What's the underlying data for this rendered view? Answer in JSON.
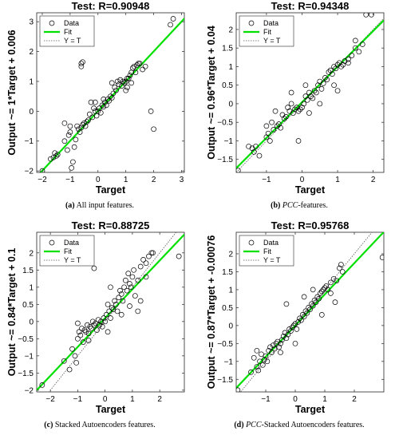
{
  "chart_data": [
    {
      "type": "scatter",
      "title": "Test: R=0.90948",
      "xlabel": "Target",
      "ylabel": "Output ~= 1*Target + 0.006",
      "xlim": [
        -2.2,
        3.1
      ],
      "ylim": [
        -2.05,
        3.3
      ],
      "xticks": [
        -2,
        -1,
        0,
        1,
        2,
        3
      ],
      "yticks": [
        -2,
        -1,
        0,
        1,
        2,
        3
      ],
      "fit": {
        "slope": 1.0,
        "intercept": 0.006
      },
      "grid": false,
      "legend": {
        "position": "top-left",
        "entries": [
          "Data",
          "Fit",
          "Y = T"
        ]
      },
      "caption": {
        "letter": "(a)",
        "text": "All input features."
      },
      "points": [
        [
          -2.0,
          -2.0
        ],
        [
          -1.7,
          -1.6
        ],
        [
          -1.6,
          -1.55
        ],
        [
          -1.55,
          -1.4
        ],
        [
          -1.5,
          -1.5
        ],
        [
          -1.45,
          -1.45
        ],
        [
          -1.2,
          -1.0
        ],
        [
          -1.1,
          -1.3
        ],
        [
          -1.05,
          -0.8
        ],
        [
          -1.0,
          -0.5
        ],
        [
          -1.0,
          -0.7
        ],
        [
          -0.95,
          -1.9
        ],
        [
          -0.9,
          -1.7
        ],
        [
          -0.85,
          -1.2
        ],
        [
          -0.8,
          -0.95
        ],
        [
          -0.75,
          -0.5
        ],
        [
          -0.7,
          -0.6
        ],
        [
          -0.65,
          -0.7
        ],
        [
          -0.6,
          -0.55
        ],
        [
          -0.55,
          -0.45
        ],
        [
          -0.5,
          -0.4
        ],
        [
          -0.45,
          -0.5
        ],
        [
          -0.4,
          -0.35
        ],
        [
          -0.35,
          -0.3
        ],
        [
          -0.3,
          -0.1
        ],
        [
          -0.25,
          0.3
        ],
        [
          -0.2,
          -0.2
        ],
        [
          -0.15,
          0.1
        ],
        [
          -0.1,
          0.0
        ],
        [
          -0.05,
          -0.15
        ],
        [
          0.0,
          0.0
        ],
        [
          0.05,
          0.1
        ],
        [
          0.1,
          -0.05
        ],
        [
          0.15,
          0.2
        ],
        [
          0.2,
          0.15
        ],
        [
          0.25,
          0.3
        ],
        [
          0.3,
          0.2
        ],
        [
          0.35,
          0.4
        ],
        [
          0.4,
          0.35
        ],
        [
          0.45,
          0.5
        ],
        [
          0.5,
          0.45
        ],
        [
          0.55,
          0.6
        ],
        [
          0.6,
          0.8
        ],
        [
          0.65,
          0.7
        ],
        [
          0.7,
          1.0
        ],
        [
          0.75,
          0.9
        ],
        [
          0.8,
          1.05
        ],
        [
          0.85,
          0.85
        ],
        [
          0.9,
          1.0
        ],
        [
          0.95,
          0.95
        ],
        [
          1.0,
          1.0
        ],
        [
          1.05,
          0.8
        ],
        [
          1.1,
          1.1
        ],
        [
          1.15,
          1.2
        ],
        [
          1.2,
          0.95
        ],
        [
          1.25,
          1.45
        ],
        [
          1.3,
          1.5
        ],
        [
          1.35,
          1.3
        ],
        [
          1.4,
          1.55
        ],
        [
          1.45,
          1.6
        ],
        [
          1.5,
          1.6
        ],
        [
          1.6,
          1.4
        ],
        [
          1.7,
          1.5
        ],
        [
          1.9,
          0.0
        ],
        [
          2.0,
          -0.6
        ],
        [
          2.6,
          2.9
        ],
        [
          2.7,
          3.1
        ],
        [
          -0.6,
          1.5
        ],
        [
          -0.6,
          1.6
        ],
        [
          -0.55,
          1.65
        ],
        [
          -0.1,
          0.3
        ],
        [
          0.2,
          0.4
        ],
        [
          -1.2,
          -0.4
        ],
        [
          0.5,
          0.95
        ],
        [
          1.0,
          0.7
        ],
        [
          1.05,
          1.1
        ],
        [
          1.2,
          1.3
        ]
      ]
    },
    {
      "type": "scatter",
      "title": "Test: R=0.94348",
      "xlabel": "Target",
      "ylabel": "Output ~= 0.96*Target + 0.04",
      "xlim": [
        -1.85,
        2.3
      ],
      "ylim": [
        -1.85,
        2.45
      ],
      "xticks": [
        -1,
        0,
        1,
        2
      ],
      "yticks": [
        -1.5,
        -1,
        -0.5,
        0,
        0.5,
        1,
        1.5,
        2
      ],
      "fit": {
        "slope": 0.96,
        "intercept": 0.04
      },
      "grid": false,
      "legend": {
        "position": "top-left",
        "entries": [
          "Data",
          "Fit",
          "Y = T"
        ]
      },
      "caption": {
        "letter": "(b)",
        "text": "PCC-features."
      },
      "points": [
        [
          -1.8,
          -1.8
        ],
        [
          -1.5,
          -1.15
        ],
        [
          -1.4,
          -1.2
        ],
        [
          -1.35,
          -1.3
        ],
        [
          -1.3,
          -1.15
        ],
        [
          -1.2,
          -1.4
        ],
        [
          -1.0,
          -0.6
        ],
        [
          -0.95,
          -0.8
        ],
        [
          -0.9,
          -1.0
        ],
        [
          -0.85,
          -0.5
        ],
        [
          -0.8,
          -0.7
        ],
        [
          -0.75,
          -0.2
        ],
        [
          -0.7,
          -0.6
        ],
        [
          -0.65,
          -0.55
        ],
        [
          -0.6,
          -0.65
        ],
        [
          -0.55,
          -0.3
        ],
        [
          -0.5,
          -0.4
        ],
        [
          -0.45,
          -0.35
        ],
        [
          -0.4,
          -0.1
        ],
        [
          -0.35,
          -0.2
        ],
        [
          -0.3,
          0.0
        ],
        [
          -0.25,
          -0.25
        ],
        [
          -0.2,
          -0.15
        ],
        [
          -0.15,
          -0.1
        ],
        [
          -0.1,
          -0.2
        ],
        [
          -0.05,
          -0.15
        ],
        [
          0.0,
          -0.1
        ],
        [
          0.05,
          0.0
        ],
        [
          0.1,
          0.2
        ],
        [
          0.15,
          0.1
        ],
        [
          0.2,
          0.3
        ],
        [
          0.25,
          0.2
        ],
        [
          0.3,
          0.15
        ],
        [
          0.35,
          0.35
        ],
        [
          0.4,
          0.3
        ],
        [
          0.45,
          0.5
        ],
        [
          0.5,
          0.6
        ],
        [
          0.55,
          0.4
        ],
        [
          0.6,
          0.55
        ],
        [
          0.65,
          0.7
        ],
        [
          0.7,
          0.65
        ],
        [
          0.75,
          0.85
        ],
        [
          0.8,
          0.9
        ],
        [
          0.85,
          0.8
        ],
        [
          0.9,
          1.0
        ],
        [
          0.95,
          0.95
        ],
        [
          1.0,
          1.05
        ],
        [
          1.05,
          1.1
        ],
        [
          1.1,
          1.0
        ],
        [
          1.15,
          1.05
        ],
        [
          1.2,
          1.15
        ],
        [
          1.3,
          1.2
        ],
        [
          1.4,
          1.3
        ],
        [
          1.5,
          1.5
        ],
        [
          1.6,
          1.4
        ],
        [
          1.7,
          1.6
        ],
        [
          1.8,
          2.4
        ],
        [
          1.95,
          2.4
        ],
        [
          -0.1,
          -1.0
        ],
        [
          0.1,
          0.5
        ],
        [
          0.5,
          0.0
        ],
        [
          0.9,
          0.5
        ],
        [
          1.0,
          0.35
        ],
        [
          1.5,
          1.7
        ],
        [
          -1.0,
          -0.9
        ],
        [
          0.2,
          -0.25
        ],
        [
          -0.3,
          0.3
        ],
        [
          1.3,
          1.1
        ]
      ]
    },
    {
      "type": "scatter",
      "title": "Test: R=0.88725",
      "xlabel": "Target",
      "ylabel": "Output ~= 0.84*Target + 0.1",
      "xlim": [
        -2.5,
        2.9
      ],
      "ylim": [
        -2.05,
        2.6
      ],
      "xticks": [
        -2,
        -1,
        0,
        1,
        2
      ],
      "yticks": [
        -2,
        -1.5,
        -1,
        -0.5,
        0,
        0.5,
        1,
        1.5,
        2
      ],
      "fit": {
        "slope": 0.84,
        "intercept": 0.1
      },
      "grid": false,
      "legend": {
        "position": "top-left",
        "entries": [
          "Data",
          "Fit",
          "Y = T"
        ]
      },
      "caption": {
        "letter": "(c)",
        "text": "Stacked Autoencoders features."
      },
      "points": [
        [
          -2.3,
          -1.85
        ],
        [
          -1.5,
          -1.15
        ],
        [
          -1.3,
          -1.4
        ],
        [
          -1.2,
          -0.8
        ],
        [
          -1.1,
          -1.0
        ],
        [
          -1.05,
          -1.2
        ],
        [
          -1.0,
          -0.5
        ],
        [
          -0.95,
          -0.3
        ],
        [
          -0.9,
          -0.4
        ],
        [
          -0.85,
          -0.2
        ],
        [
          -0.8,
          -0.6
        ],
        [
          -0.75,
          -0.25
        ],
        [
          -0.7,
          -0.3
        ],
        [
          -0.65,
          -0.1
        ],
        [
          -0.6,
          -0.35
        ],
        [
          -0.55,
          -0.15
        ],
        [
          -0.5,
          -0.2
        ],
        [
          -0.45,
          0.0
        ],
        [
          -0.4,
          -0.1
        ],
        [
          -0.35,
          -0.05
        ],
        [
          -0.3,
          -0.25
        ],
        [
          -0.25,
          0.05
        ],
        [
          -0.2,
          -0.1
        ],
        [
          -0.15,
          0.0
        ],
        [
          -0.1,
          -0.15
        ],
        [
          -0.05,
          0.1
        ],
        [
          0.0,
          0.0
        ],
        [
          0.05,
          0.2
        ],
        [
          0.1,
          0.5
        ],
        [
          0.15,
          0.3
        ],
        [
          0.2,
          0.1
        ],
        [
          0.25,
          0.4
        ],
        [
          0.3,
          0.35
        ],
        [
          0.35,
          0.6
        ],
        [
          0.4,
          0.5
        ],
        [
          0.45,
          0.3
        ],
        [
          0.5,
          0.7
        ],
        [
          0.55,
          0.9
        ],
        [
          0.6,
          0.8
        ],
        [
          0.65,
          0.6
        ],
        [
          0.7,
          1.0
        ],
        [
          0.75,
          1.2
        ],
        [
          0.8,
          0.9
        ],
        [
          0.85,
          1.4
        ],
        [
          0.9,
          1.1
        ],
        [
          0.95,
          1.0
        ],
        [
          1.0,
          1.3
        ],
        [
          1.05,
          1.5
        ],
        [
          1.1,
          0.75
        ],
        [
          1.2,
          1.2
        ],
        [
          1.3,
          1.6
        ],
        [
          1.4,
          1.8
        ],
        [
          1.5,
          1.7
        ],
        [
          1.6,
          1.9
        ],
        [
          1.7,
          2.0
        ],
        [
          1.75,
          2.0
        ],
        [
          2.7,
          1.9
        ],
        [
          -0.4,
          1.55
        ],
        [
          0.2,
          1.0
        ],
        [
          1.2,
          0.3
        ],
        [
          1.3,
          0.6
        ],
        [
          -1.0,
          -0.05
        ],
        [
          0.1,
          -0.3
        ],
        [
          0.9,
          0.45
        ],
        [
          1.5,
          1.3
        ],
        [
          -0.6,
          -0.55
        ],
        [
          0.6,
          0.2
        ]
      ]
    },
    {
      "type": "scatter",
      "title": "Test: R=0.95768",
      "xlabel": "Target",
      "ylabel": "Output ~= 0.87*Target + -0.00076",
      "xlim": [
        -2.0,
        3.0
      ],
      "ylim": [
        -1.85,
        2.6
      ],
      "xticks": [
        -1,
        0,
        1,
        2
      ],
      "yticks": [
        -1.5,
        -1,
        -0.5,
        0,
        0.5,
        1,
        1.5,
        2
      ],
      "fit": {
        "slope": 0.87,
        "intercept": -0.00076
      },
      "grid": false,
      "legend": {
        "position": "top-left",
        "entries": [
          "Data",
          "Fit",
          "Y = T"
        ]
      },
      "caption": {
        "letter": "(d)",
        "text": "PCC-Stacked Autoencoders features."
      },
      "points": [
        [
          -1.95,
          -1.8
        ],
        [
          -1.5,
          -1.3
        ],
        [
          -1.4,
          -0.9
        ],
        [
          -1.3,
          -1.15
        ],
        [
          -1.25,
          -1.25
        ],
        [
          -1.2,
          -1.0
        ],
        [
          -1.15,
          -0.8
        ],
        [
          -1.1,
          -1.1
        ],
        [
          -1.05,
          -0.95
        ],
        [
          -1.0,
          -0.85
        ],
        [
          -0.95,
          -1.0
        ],
        [
          -0.9,
          -0.7
        ],
        [
          -0.85,
          -0.6
        ],
        [
          -0.8,
          -0.75
        ],
        [
          -0.75,
          -0.55
        ],
        [
          -0.7,
          -0.65
        ],
        [
          -0.65,
          -0.5
        ],
        [
          -0.6,
          -0.45
        ],
        [
          -0.55,
          -0.6
        ],
        [
          -0.5,
          -0.5
        ],
        [
          -0.45,
          -0.4
        ],
        [
          -0.4,
          -0.3
        ],
        [
          -0.35,
          -0.2
        ],
        [
          -0.3,
          -0.35
        ],
        [
          -0.25,
          -0.25
        ],
        [
          -0.2,
          -0.1
        ],
        [
          -0.15,
          -0.15
        ],
        [
          -0.1,
          -0.05
        ],
        [
          -0.05,
          0.0
        ],
        [
          0.0,
          0.05
        ],
        [
          0.05,
          -0.1
        ],
        [
          0.1,
          0.1
        ],
        [
          0.15,
          0.2
        ],
        [
          0.2,
          0.15
        ],
        [
          0.25,
          0.3
        ],
        [
          0.3,
          0.25
        ],
        [
          0.35,
          0.4
        ],
        [
          0.4,
          0.35
        ],
        [
          0.45,
          0.5
        ],
        [
          0.5,
          0.45
        ],
        [
          0.55,
          0.6
        ],
        [
          0.6,
          0.55
        ],
        [
          0.65,
          0.7
        ],
        [
          0.7,
          0.65
        ],
        [
          0.75,
          0.8
        ],
        [
          0.8,
          0.75
        ],
        [
          0.85,
          0.9
        ],
        [
          0.9,
          0.95
        ],
        [
          0.95,
          1.0
        ],
        [
          1.0,
          1.05
        ],
        [
          1.05,
          1.1
        ],
        [
          1.1,
          1.0
        ],
        [
          1.2,
          1.2
        ],
        [
          1.3,
          1.3
        ],
        [
          1.4,
          1.25
        ],
        [
          1.5,
          1.6
        ],
        [
          1.55,
          1.7
        ],
        [
          1.6,
          1.5
        ],
        [
          2.95,
          1.9
        ],
        [
          -0.3,
          0.6
        ],
        [
          0.0,
          -0.5
        ],
        [
          0.3,
          0.8
        ],
        [
          0.9,
          0.3
        ],
        [
          1.2,
          0.9
        ],
        [
          -1.3,
          -0.7
        ],
        [
          0.6,
          1.0
        ],
        [
          -0.5,
          -0.75
        ],
        [
          1.35,
          0.65
        ]
      ]
    }
  ]
}
